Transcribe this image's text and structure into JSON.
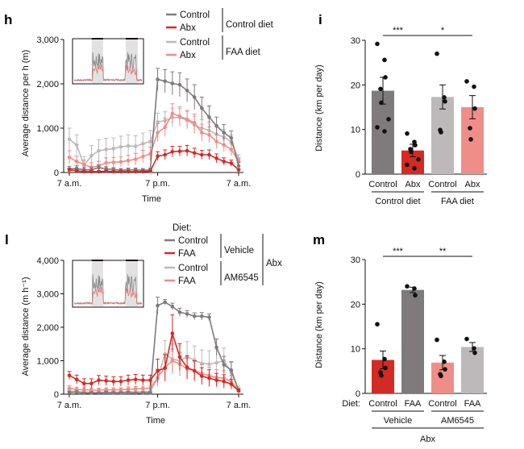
{
  "colors": {
    "control": "#7f7a7b",
    "abx": "#d42a25",
    "faa_control": "#bdb9ba",
    "faa_abx": "#ef8d88"
  },
  "chart_data": [
    {
      "panel": "h",
      "type": "line",
      "xlabel": "Time",
      "ylabel": "Average distance per h (m)",
      "ylim": [
        0,
        3000
      ],
      "y_ticks": [
        "0",
        "1,000",
        "2,000",
        "3,000"
      ],
      "x_ticks": [
        "7 a.m.",
        "7 p.m.",
        "7 a.m."
      ],
      "x": [
        0,
        1,
        2,
        3,
        4,
        5,
        6,
        7,
        8,
        9,
        10,
        11,
        12,
        13,
        14,
        15,
        16,
        17,
        18,
        19,
        20,
        21,
        22,
        23
      ],
      "legend": {
        "groups": [
          {
            "name": "Control diet",
            "entries": [
              "Control",
              "Abx"
            ]
          },
          {
            "name": "FAA diet",
            "entries": [
              "Control",
              "Abx"
            ]
          }
        ]
      },
      "series": [
        {
          "name": "Control",
          "group": "Control diet",
          "color_key": "control",
          "values": [
            80,
            90,
            60,
            60,
            110,
            80,
            70,
            50,
            60,
            60,
            50,
            60,
            2100,
            2060,
            2010,
            1980,
            1850,
            1700,
            1450,
            1250,
            1050,
            900,
            780,
            150
          ],
          "err": [
            60,
            60,
            50,
            50,
            60,
            50,
            40,
            40,
            40,
            40,
            40,
            40,
            250,
            260,
            260,
            270,
            260,
            280,
            250,
            250,
            200,
            180,
            160,
            80
          ]
        },
        {
          "name": "Abx",
          "group": "Control diet",
          "color_key": "abx",
          "values": [
            60,
            40,
            20,
            20,
            20,
            30,
            20,
            20,
            20,
            20,
            20,
            30,
            370,
            400,
            470,
            480,
            490,
            440,
            400,
            400,
            320,
            250,
            210,
            60
          ],
          "err": [
            30,
            20,
            20,
            20,
            20,
            20,
            20,
            20,
            20,
            20,
            20,
            20,
            100,
            110,
            120,
            110,
            120,
            110,
            100,
            110,
            100,
            80,
            70,
            30
          ]
        },
        {
          "name": "Control",
          "group": "FAA diet",
          "color_key": "faa_control",
          "values": [
            750,
            620,
            160,
            380,
            490,
            520,
            540,
            580,
            600,
            590,
            650,
            700,
            1140,
            1170,
            1240,
            1240,
            1180,
            1070,
            1000,
            950,
            860,
            800,
            690,
            300
          ],
          "err": [
            250,
            230,
            200,
            230,
            250,
            250,
            240,
            240,
            250,
            240,
            240,
            250,
            200,
            200,
            210,
            200,
            200,
            200,
            190,
            190,
            180,
            170,
            160,
            100
          ]
        },
        {
          "name": "Abx",
          "group": "FAA diet",
          "color_key": "faa_abx",
          "values": [
            340,
            250,
            180,
            120,
            150,
            220,
            230,
            240,
            270,
            300,
            360,
            420,
            900,
            1020,
            1330,
            1270,
            1200,
            1120,
            900,
            850,
            700,
            620,
            520,
            250
          ],
          "err": [
            150,
            120,
            100,
            100,
            100,
            110,
            110,
            110,
            120,
            130,
            140,
            150,
            200,
            210,
            220,
            210,
            200,
            200,
            190,
            180,
            160,
            150,
            140,
            80
          ]
        }
      ]
    },
    {
      "panel": "i",
      "type": "bar",
      "ylabel": "Distance (km per day)",
      "ylim": [
        0,
        30
      ],
      "y_ticks": [
        "0",
        "10",
        "20",
        "30"
      ],
      "categories": [
        "Control",
        "Abx",
        "Control",
        "Abx"
      ],
      "groups": [
        {
          "name": "Control diet",
          "span": [
            0,
            1
          ]
        },
        {
          "name": "FAA diet",
          "span": [
            2,
            3
          ]
        }
      ],
      "values": [
        18.7,
        5.3,
        17.3,
        15.0
      ],
      "err": [
        3.0,
        1.4,
        2.7,
        2.6
      ],
      "color_keys": [
        "control",
        "abx",
        "faa_control",
        "faa_abx"
      ],
      "points": [
        [
          29.2,
          25.6,
          21.7,
          19.1,
          16.0,
          12.3,
          10.5,
          9.6
        ],
        [
          9.1,
          7.2,
          6.5,
          5.6,
          5.0,
          3.3,
          2.1,
          1.3
        ],
        [
          27.0,
          17.2,
          16.3,
          9.9,
          9.4
        ],
        [
          20.8,
          19.6,
          14.7,
          10.3,
          7.8
        ]
      ],
      "significance": [
        {
          "from": 0,
          "to": 1,
          "label": "***"
        },
        {
          "from": 1,
          "to": 3,
          "label": "*"
        }
      ]
    },
    {
      "panel": "l",
      "type": "line",
      "xlabel": "Time",
      "ylabel": "Average distance (m h⁻¹)",
      "ylim": [
        0,
        4000
      ],
      "y_ticks": [
        "0",
        "1,000",
        "2,000",
        "3,000",
        "4,000"
      ],
      "x_ticks": [
        "7 a.m.",
        "7 p.m.",
        "7 a.m."
      ],
      "x": [
        0,
        1,
        2,
        3,
        4,
        5,
        6,
        7,
        8,
        9,
        10,
        11,
        12,
        13,
        14,
        15,
        16,
        17,
        18,
        19,
        20,
        21,
        22,
        23
      ],
      "legend": {
        "title": "Diet:",
        "groups": [
          {
            "name": "Vehicle",
            "entries": [
              "Control",
              "FAA"
            ]
          },
          {
            "name": "AM6545",
            "entries": [
              "Control",
              "FAA"
            ]
          }
        ],
        "outer_group": "Abx"
      },
      "series": [
        {
          "name": "Control",
          "group": "Vehicle",
          "color_key": "control",
          "values": [
            50,
            60,
            30,
            40,
            30,
            50,
            40,
            40,
            50,
            30,
            40,
            40,
            2650,
            2750,
            2620,
            2450,
            2400,
            2330,
            2330,
            2300,
            1400,
            880,
            720,
            100
          ],
          "err": [
            40,
            40,
            30,
            30,
            30,
            40,
            30,
            30,
            30,
            30,
            30,
            30,
            250,
            80,
            100,
            120,
            100,
            100,
            110,
            100,
            250,
            250,
            250,
            60
          ]
        },
        {
          "name": "FAA",
          "group": "Vehicle",
          "color_key": "abx",
          "values": [
            560,
            440,
            320,
            320,
            420,
            400,
            380,
            380,
            420,
            440,
            420,
            420,
            700,
            780,
            1820,
            1110,
            800,
            700,
            540,
            480,
            420,
            380,
            300,
            100
          ],
          "err": [
            120,
            130,
            140,
            140,
            140,
            140,
            140,
            140,
            150,
            150,
            150,
            150,
            350,
            400,
            550,
            400,
            350,
            300,
            250,
            250,
            200,
            200,
            150,
            60
          ]
        },
        {
          "name": "Control",
          "group": "AM6545",
          "color_key": "faa_control",
          "values": [
            100,
            80,
            60,
            60,
            60,
            60,
            60,
            60,
            70,
            70,
            70,
            80,
            480,
            1200,
            1050,
            1000,
            1120,
            1020,
            920,
            900,
            940,
            1000,
            650,
            160
          ],
          "err": [
            50,
            40,
            30,
            30,
            30,
            30,
            30,
            30,
            30,
            30,
            30,
            30,
            250,
            400,
            450,
            450,
            450,
            420,
            400,
            400,
            400,
            380,
            300,
            80
          ]
        },
        {
          "name": "FAA",
          "group": "AM6545",
          "color_key": "faa_abx",
          "values": [
            180,
            140,
            130,
            120,
            120,
            130,
            130,
            130,
            150,
            160,
            170,
            180,
            500,
            800,
            1000,
            900,
            760,
            700,
            620,
            560,
            500,
            480,
            380,
            100
          ],
          "err": [
            80,
            70,
            60,
            60,
            60,
            60,
            60,
            60,
            70,
            70,
            70,
            80,
            250,
            300,
            350,
            350,
            300,
            280,
            260,
            250,
            230,
            220,
            180,
            60
          ]
        }
      ]
    },
    {
      "panel": "m",
      "type": "bar",
      "ylabel": "Distance (km per day)",
      "ylim": [
        0,
        30
      ],
      "y_ticks": [
        "0",
        "10",
        "20",
        "30"
      ],
      "row_label": "Diet:",
      "categories": [
        "Control",
        "FAA",
        "Control",
        "FAA"
      ],
      "groups": [
        {
          "name": "Vehicle",
          "span": [
            0,
            1
          ]
        },
        {
          "name": "AM6545",
          "span": [
            2,
            3
          ]
        }
      ],
      "outer_group": "Abx",
      "values": [
        7.5,
        23.2,
        6.9,
        10.4
      ],
      "err": [
        2.0,
        0.6,
        1.6,
        1.0
      ],
      "color_keys": [
        "abx",
        "control",
        "faa_abx",
        "faa_control"
      ],
      "points": [
        [
          15.5,
          7.7,
          5.7,
          4.7,
          4.0
        ],
        [
          24.0,
          23.5,
          22.0
        ],
        [
          12.0,
          7.1,
          5.4,
          4.3,
          3.9
        ],
        [
          12.2,
          10.1,
          9.1
        ]
      ],
      "significance": [
        {
          "from": 0,
          "to": 1,
          "label": "***"
        },
        {
          "from": 1,
          "to": 3,
          "label": "**"
        }
      ]
    }
  ]
}
